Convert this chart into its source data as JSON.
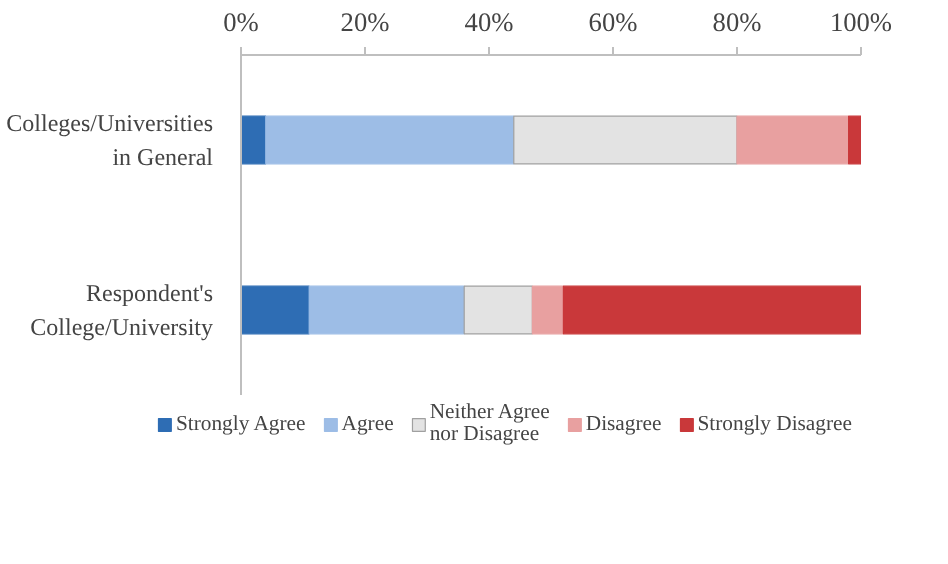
{
  "chart_data": {
    "type": "bar",
    "orientation": "horizontal",
    "stacked": true,
    "categories": [
      "Colleges/Universities in General",
      "Respondent's College/University"
    ],
    "series": [
      {
        "name": "Strongly Agree",
        "color": "#2e6db4",
        "values": [
          4,
          11
        ]
      },
      {
        "name": "Agree",
        "color": "#9dbde6",
        "values": [
          40,
          25
        ]
      },
      {
        "name": "Neither Agree nor Disagree",
        "color": "#e3e3e3",
        "values": [
          36,
          11
        ]
      },
      {
        "name": "Disagree",
        "color": "#e8a0a0",
        "values": [
          18,
          5
        ]
      },
      {
        "name": "Strongly Disagree",
        "color": "#c9383a",
        "values": [
          2,
          48
        ]
      }
    ],
    "xlim": [
      0,
      100
    ],
    "xticks": [
      {
        "value": 0,
        "label": "0%"
      },
      {
        "value": 20,
        "label": "20%"
      },
      {
        "value": 40,
        "label": "40%"
      },
      {
        "value": 60,
        "label": "60%"
      },
      {
        "value": 80,
        "label": "80%"
      },
      {
        "value": 100,
        "label": "100%"
      }
    ],
    "grid": false,
    "legend": "bottom"
  }
}
